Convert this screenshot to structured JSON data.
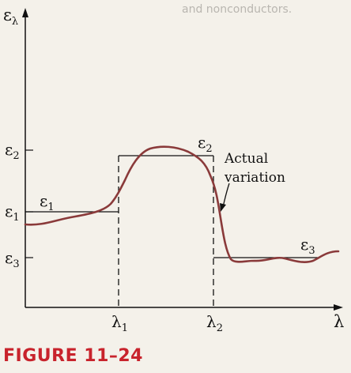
{
  "figure_label": "FIGURE 11–24",
  "bleed_text": "and nonconductors.",
  "chart_data": {
    "type": "line",
    "x_axis_label": "λ",
    "y_axis_label": "ελ",
    "x_ticks": [
      "λ1",
      "λ2"
    ],
    "y_ticks": [
      "ε2",
      "ε1",
      "ε3"
    ],
    "band_labels": [
      "ε1",
      "ε2",
      "ε3"
    ],
    "annotation": "Actual variation",
    "series": [
      {
        "name": "step approximation",
        "style": "step",
        "segments": [
          {
            "x0": 0,
            "x1": 1,
            "y": "ε1"
          },
          {
            "x0": 1,
            "x1": 2,
            "y": "ε2"
          },
          {
            "x0": 2,
            "x1": 3,
            "y": "ε3"
          }
        ]
      },
      {
        "name": "Actual variation",
        "style": "smooth curve",
        "description": "smooth curve tracking the three step levels"
      }
    ],
    "colors": {
      "step": "#111111",
      "actual": "#8a3a3a",
      "caption": "#c8232c"
    }
  }
}
